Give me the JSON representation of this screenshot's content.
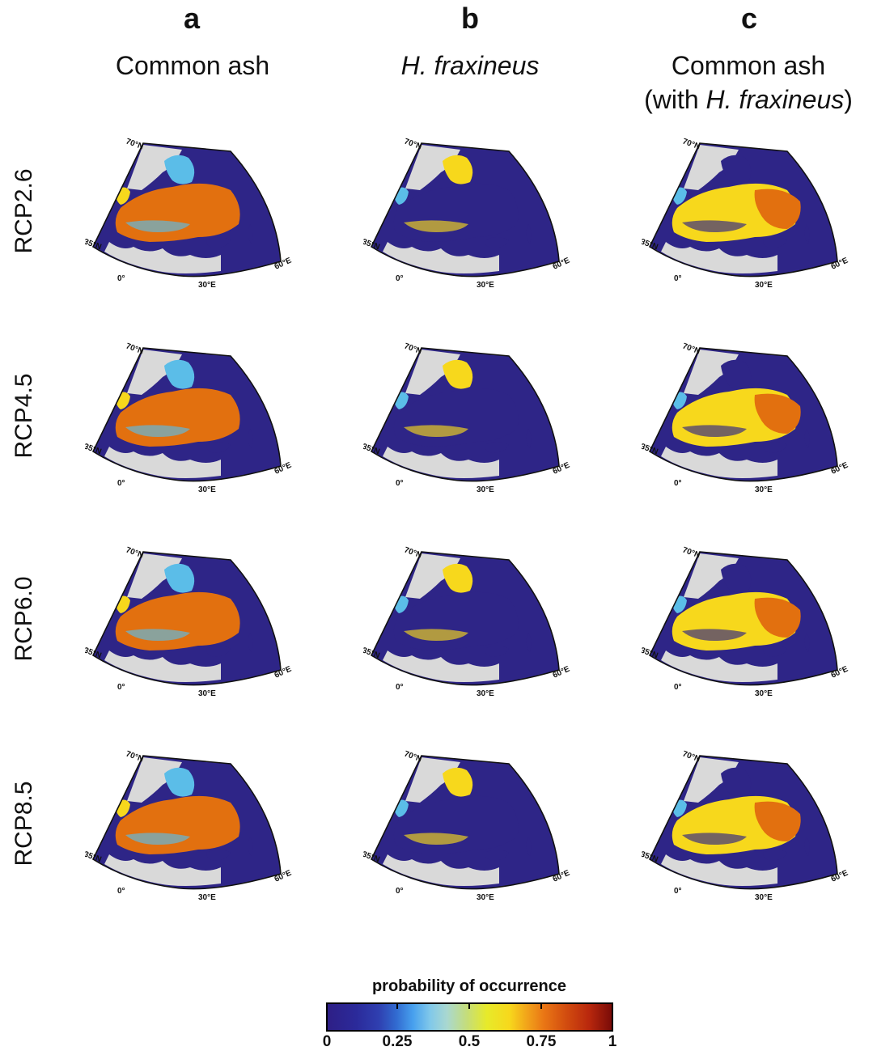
{
  "columns": [
    {
      "letter": "a",
      "title_line1": "Common ash",
      "title_line2_pre": "",
      "title_line2_italic": "",
      "title_line2_post": ""
    },
    {
      "letter": "b",
      "title_line1": "",
      "title_line1_italic": "H. fraxineus"
    },
    {
      "letter": "c",
      "title_line1": "Common ash",
      "title_line2_pre": "(with ",
      "title_line2_italic": "H. fraxineus",
      "title_line2_post": ")"
    }
  ],
  "rows": [
    "RCP2.6",
    "RCP4.5",
    "RCP6.0",
    "RCP8.5"
  ],
  "map_labels": {
    "lat_top": "70°N",
    "lat_left": "35°N",
    "lon_left": "0°",
    "lon_mid": "30°E",
    "lon_right": "60°E"
  },
  "legend": {
    "title": "probability of occurrence",
    "ticks": [
      "0",
      "0.25",
      "0.5",
      "0.75",
      "1"
    ],
    "colors": [
      "#2e1f86",
      "#47a0ee",
      "#c5dd7a",
      "#ea7715",
      "#7a0b08"
    ]
  },
  "colors": {
    "ocean_low": "#2e2587",
    "land_nodata": "#d9d9d9",
    "high": "#e2700f",
    "mid": "#f7d81c",
    "cyan": "#5bbde8"
  }
}
